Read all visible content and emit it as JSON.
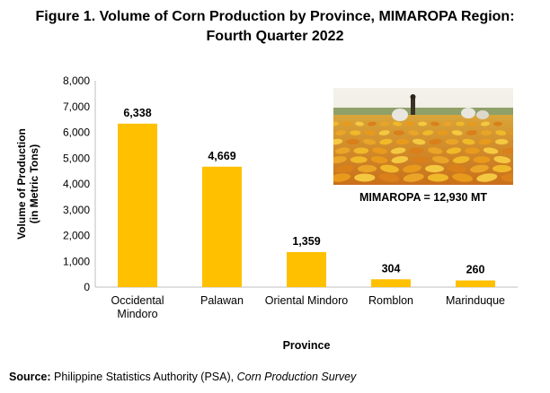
{
  "figure": {
    "title_line1": "Figure 1. Volume of Corn Production by Province, MIMAROPA Region:",
    "title_line2": "Fourth Quarter 2022"
  },
  "photo": {
    "caption": "MIMAROPA = 12,930 MT",
    "icon": "corn-harvest-photo"
  },
  "source": {
    "label": "Source:",
    "text": "Philippine Statistics Authority (PSA),",
    "survey": "Corn Production Survey"
  },
  "chart_data": {
    "type": "bar",
    "categories": [
      [
        "Occidental",
        "Mindoro"
      ],
      [
        "Palawan"
      ],
      [
        "Oriental Mindoro"
      ],
      [
        "Romblon"
      ],
      [
        "Marinduque"
      ]
    ],
    "values": [
      6338,
      4669,
      1359,
      304,
      260
    ],
    "value_labels": [
      "6,338",
      "4,669",
      "1,359",
      "304",
      "260"
    ],
    "xlabel": "Province",
    "ylabel_line1": "Volume of Production",
    "ylabel_line2": "(in Metric Tons)",
    "ylim": [
      0,
      8000
    ],
    "yticks": [
      0,
      1000,
      2000,
      3000,
      4000,
      5000,
      6000,
      7000,
      8000
    ],
    "ytick_labels": [
      "0",
      "1,000",
      "2,000",
      "3,000",
      "4,000",
      "5,000",
      "6,000",
      "7,000",
      "8,000"
    ],
    "bar_color": "#FFC000",
    "grid": false,
    "legend": "none"
  }
}
